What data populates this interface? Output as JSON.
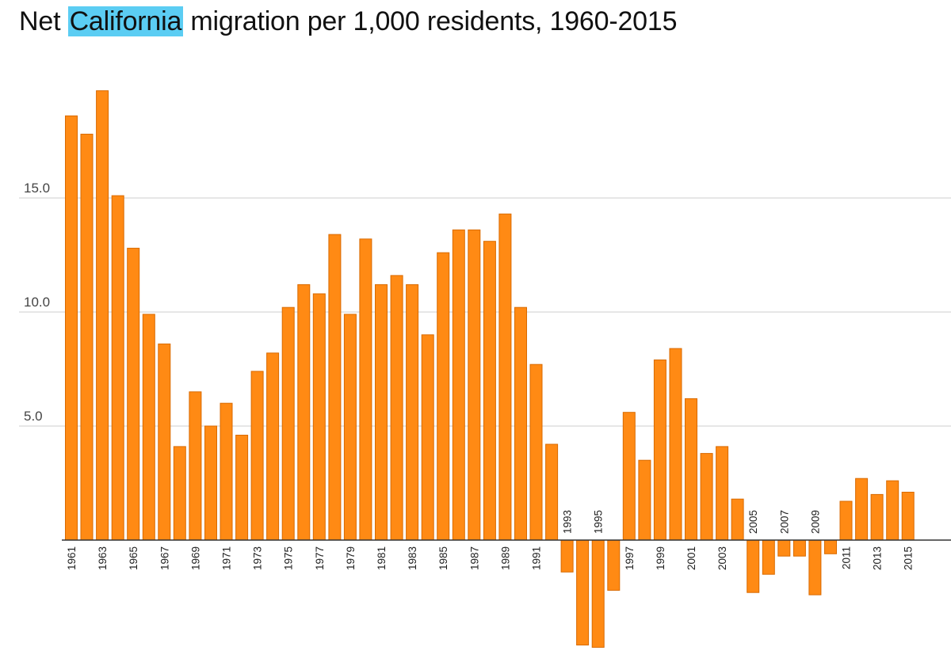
{
  "title": {
    "prefix": "Net ",
    "highlight": "California",
    "suffix": " migration per 1,000 residents, 1960-2015"
  },
  "colors": {
    "bar_fill": "#ff8a14",
    "bar_stroke": "#d96a00",
    "highlight": "#5bcdf3",
    "gridline": "#cccccc",
    "axis": "#333333"
  },
  "chart_data": {
    "type": "bar",
    "title": "Net California migration per 1,000 residents, 1960-2015",
    "xlabel": "",
    "ylabel": "",
    "ylim": [
      -5,
      20
    ],
    "yticks": [
      5.0,
      10.0,
      15.0
    ],
    "ytick_labels": [
      "5.0",
      "10.0",
      "15.0"
    ],
    "grid": true,
    "legend": "none",
    "categories": [
      "1961",
      "1962",
      "1963",
      "1964",
      "1965",
      "1966",
      "1967",
      "1968",
      "1969",
      "1970",
      "1971",
      "1972",
      "1973",
      "1974",
      "1975",
      "1976",
      "1977",
      "1978",
      "1979",
      "1980",
      "1981",
      "1982",
      "1983",
      "1984",
      "1985",
      "1986",
      "1987",
      "1988",
      "1989",
      "1990",
      "1991",
      "1992",
      "1993",
      "1994",
      "1995",
      "1996",
      "1997",
      "1998",
      "1999",
      "2000",
      "2001",
      "2002",
      "2003",
      "2004",
      "2005",
      "2006",
      "2007",
      "2008",
      "2009",
      "2010",
      "2011",
      "2012",
      "2013",
      "2014",
      "2015"
    ],
    "tick_labels_below": [
      "1961",
      "1963",
      "1965",
      "1967",
      "1969",
      "1971",
      "1973",
      "1975",
      "1977",
      "1979",
      "1981",
      "1983",
      "1985",
      "1987",
      "1989",
      "1991",
      "1997",
      "1999",
      "2001",
      "2003",
      "2011",
      "2013",
      "2015"
    ],
    "tick_labels_above": [
      "1993",
      "1995",
      "2005",
      "2007",
      "2009"
    ],
    "values": [
      18.6,
      17.8,
      19.7,
      15.1,
      12.8,
      9.9,
      8.6,
      4.1,
      6.5,
      5.0,
      6.0,
      4.6,
      7.4,
      8.2,
      10.2,
      11.2,
      10.8,
      13.4,
      9.9,
      13.2,
      11.2,
      11.6,
      11.2,
      9.0,
      12.6,
      13.6,
      13.6,
      13.1,
      14.3,
      10.2,
      7.7,
      4.2,
      -1.4,
      -4.6,
      -4.7,
      -2.2,
      5.6,
      3.5,
      7.9,
      8.4,
      6.2,
      3.8,
      4.1,
      1.8,
      -2.3,
      -1.5,
      -0.7,
      -0.7,
      -2.4,
      -0.6,
      1.7,
      2.7,
      2.0,
      2.6,
      2.1
    ]
  }
}
